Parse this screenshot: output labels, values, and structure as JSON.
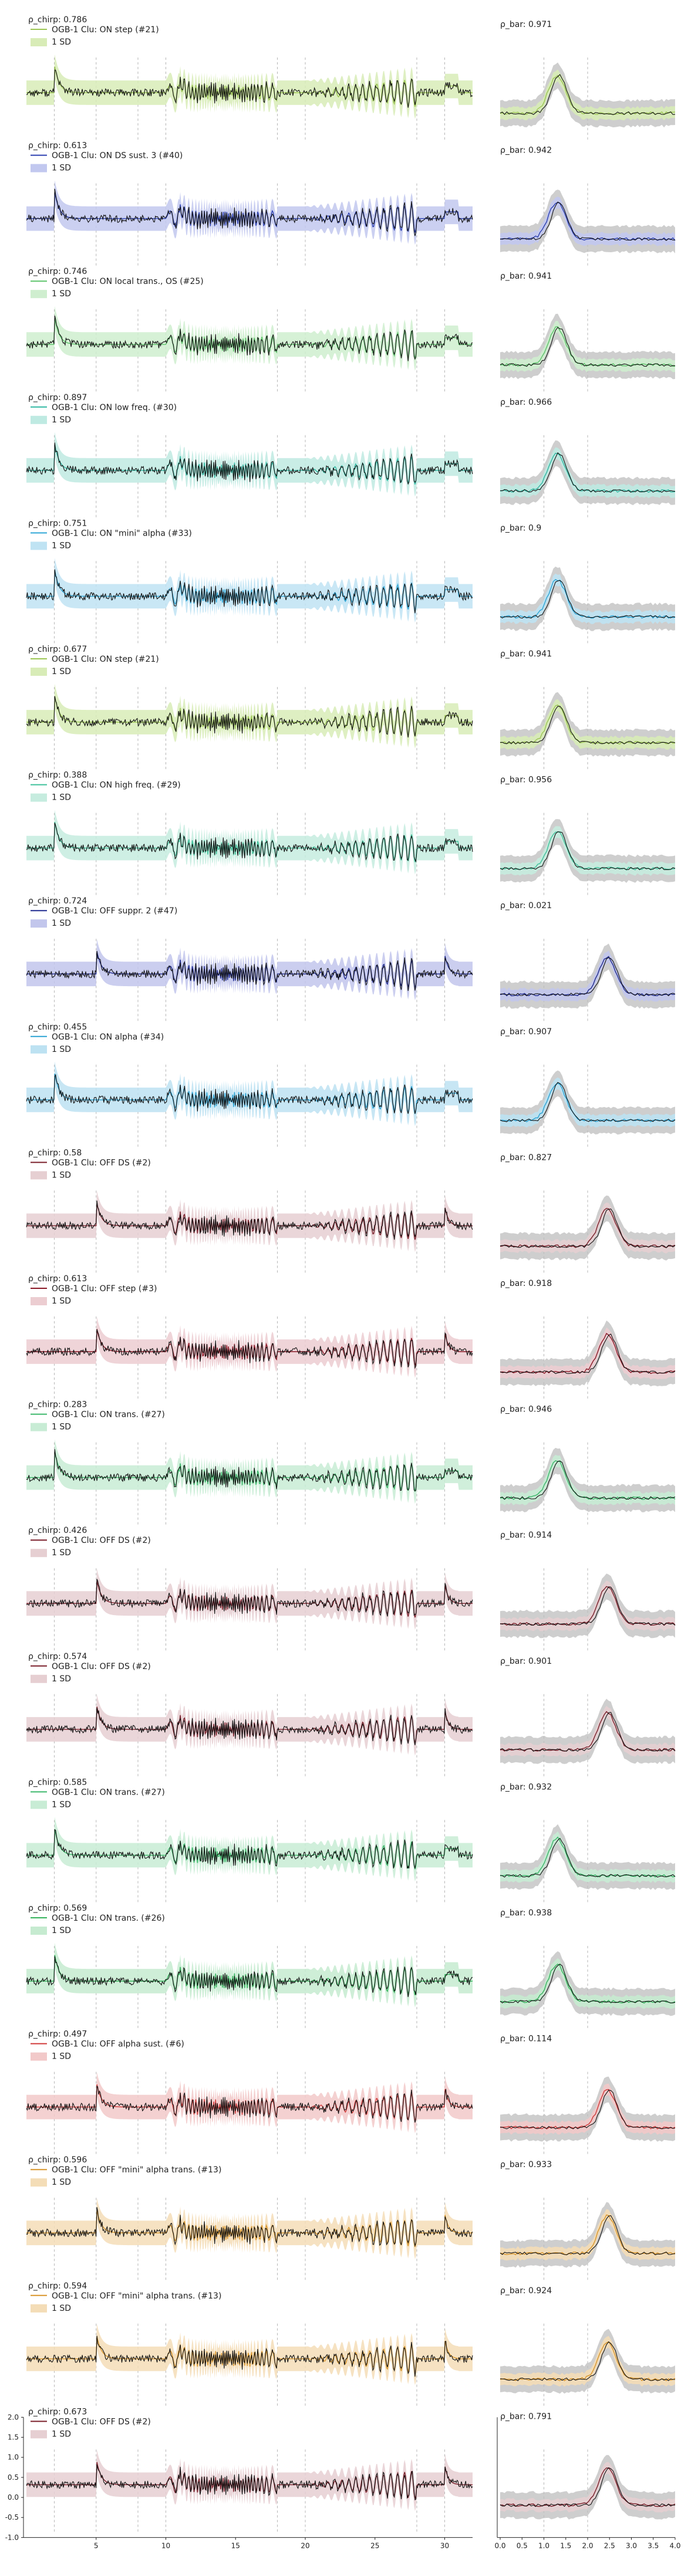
{
  "legend_labels": {
    "sd": "1 SD"
  },
  "rho_label_left": "ρ_chirp",
  "rho_label_right": "ρ_bar",
  "colors": {
    "cell_trace": "#111111",
    "sd_band_right_gray": "#bdbdbd",
    "event_line": "#b5b5b5"
  },
  "chart_data": {
    "type": "line",
    "panels": [
      {
        "cluster": "OGB-1 Clu: ON step (#21)",
        "rho_chirp": "0.786",
        "rho_bar": "0.971",
        "color": "#9cc653",
        "band": "#d8ecb7"
      },
      {
        "cluster": "OGB-1 Clu: ON DS sust. 3 (#40)",
        "rho_chirp": "0.613",
        "rho_bar": "0.942",
        "color": "#2b3fb0",
        "band": "#c2c8ef"
      },
      {
        "cluster": "OGB-1 Clu: ON local trans., OS (#25)",
        "rho_chirp": "0.746",
        "rho_bar": "0.941",
        "color": "#5cc46a",
        "band": "#cfeecf"
      },
      {
        "cluster": "OGB-1 Clu: ON low freq. (#30)",
        "rho_chirp": "0.897",
        "rho_bar": "0.966",
        "color": "#2fb8a2",
        "band": "#bfeae2"
      },
      {
        "cluster": "OGB-1 Clu: ON \"mini\" alpha (#33)",
        "rho_chirp": "0.751",
        "rho_bar": "0.9",
        "color": "#2da6d6",
        "band": "#bfe3f3"
      },
      {
        "cluster": "OGB-1 Clu: ON step (#21)",
        "rho_chirp": "0.677",
        "rho_bar": "0.941",
        "color": "#9cc653",
        "band": "#d8ecb7"
      },
      {
        "cluster": "OGB-1 Clu: ON high freq. (#29)",
        "rho_chirp": "0.388",
        "rho_bar": "0.956",
        "color": "#3ec19a",
        "band": "#c6ecdf"
      },
      {
        "cluster": "OGB-1 Clu: OFF suppr. 2 (#47)",
        "rho_chirp": "0.724",
        "rho_bar": "0.021",
        "color": "#1f2a8f",
        "band": "#c2c6ec"
      },
      {
        "cluster": "OGB-1 Clu: ON alpha (#34)",
        "rho_chirp": "0.455",
        "rho_bar": "0.907",
        "color": "#2aa3d4",
        "band": "#bde2f2"
      },
      {
        "cluster": "OGB-1 Clu: OFF DS (#2)",
        "rho_chirp": "0.58",
        "rho_bar": "0.827",
        "color": "#7a1f2a",
        "band": "#e6cfd2"
      },
      {
        "cluster": "OGB-1 Clu: OFF step (#3)",
        "rho_chirp": "0.613",
        "rho_bar": "0.918",
        "color": "#8a1826",
        "band": "#eccdd1"
      },
      {
        "cluster": "OGB-1 Clu: ON trans. (#27)",
        "rho_chirp": "0.283",
        "rho_bar": "0.946",
        "color": "#3bb86a",
        "band": "#c8ecd5"
      },
      {
        "cluster": "OGB-1 Clu: OFF DS (#2)",
        "rho_chirp": "0.426",
        "rho_bar": "0.914",
        "color": "#7a1f2a",
        "band": "#e6cfd2"
      },
      {
        "cluster": "OGB-1 Clu: OFF DS (#2)",
        "rho_chirp": "0.574",
        "rho_bar": "0.901",
        "color": "#7a1f2a",
        "band": "#e6cfd2"
      },
      {
        "cluster": "OGB-1 Clu: ON trans. (#27)",
        "rho_chirp": "0.585",
        "rho_bar": "0.932",
        "color": "#3bb86a",
        "band": "#c8ecd5"
      },
      {
        "cluster": "OGB-1 Clu: ON trans. (#26)",
        "rho_chirp": "0.569",
        "rho_bar": "0.938",
        "color": "#35b35c",
        "band": "#c6ebd0"
      },
      {
        "cluster": "OGB-1 Clu: OFF alpha sust. (#6)",
        "rho_chirp": "0.497",
        "rho_bar": "0.114",
        "color": "#d03a3a",
        "band": "#f2c9c9"
      },
      {
        "cluster": "OGB-1 Clu: OFF \"mini\" alpha trans. (#13)",
        "rho_chirp": "0.596",
        "rho_bar": "0.933",
        "color": "#d9962b",
        "band": "#f4ddb7"
      },
      {
        "cluster": "OGB-1 Clu: OFF \"mini\" alpha trans. (#13)",
        "rho_chirp": "0.594",
        "rho_bar": "0.924",
        "color": "#d9962b",
        "band": "#f4ddb7"
      },
      {
        "cluster": "OGB-1 Clu: OFF DS (#2)",
        "rho_chirp": "0.673",
        "rho_bar": "0.791",
        "color": "#7a1f2a",
        "band": "#e6cfd2"
      }
    ],
    "left_axis": {
      "xlim": [
        0,
        32
      ],
      "xticks": [
        5,
        10,
        15,
        20,
        25,
        30
      ],
      "ylim": [
        -1.0,
        2.0
      ],
      "yticks": [
        -1.0,
        -0.5,
        0.0,
        0.5,
        1.0,
        1.5,
        2.0
      ],
      "event_lines": [
        2,
        5,
        8,
        10,
        18,
        20,
        28,
        30
      ]
    },
    "right_axis": {
      "xlim": [
        0,
        4
      ],
      "xticks": [
        0.0,
        0.5,
        1.0,
        1.5,
        2.0,
        2.5,
        3.0,
        3.5,
        4.0
      ],
      "event_lines": [
        1,
        2
      ]
    }
  }
}
